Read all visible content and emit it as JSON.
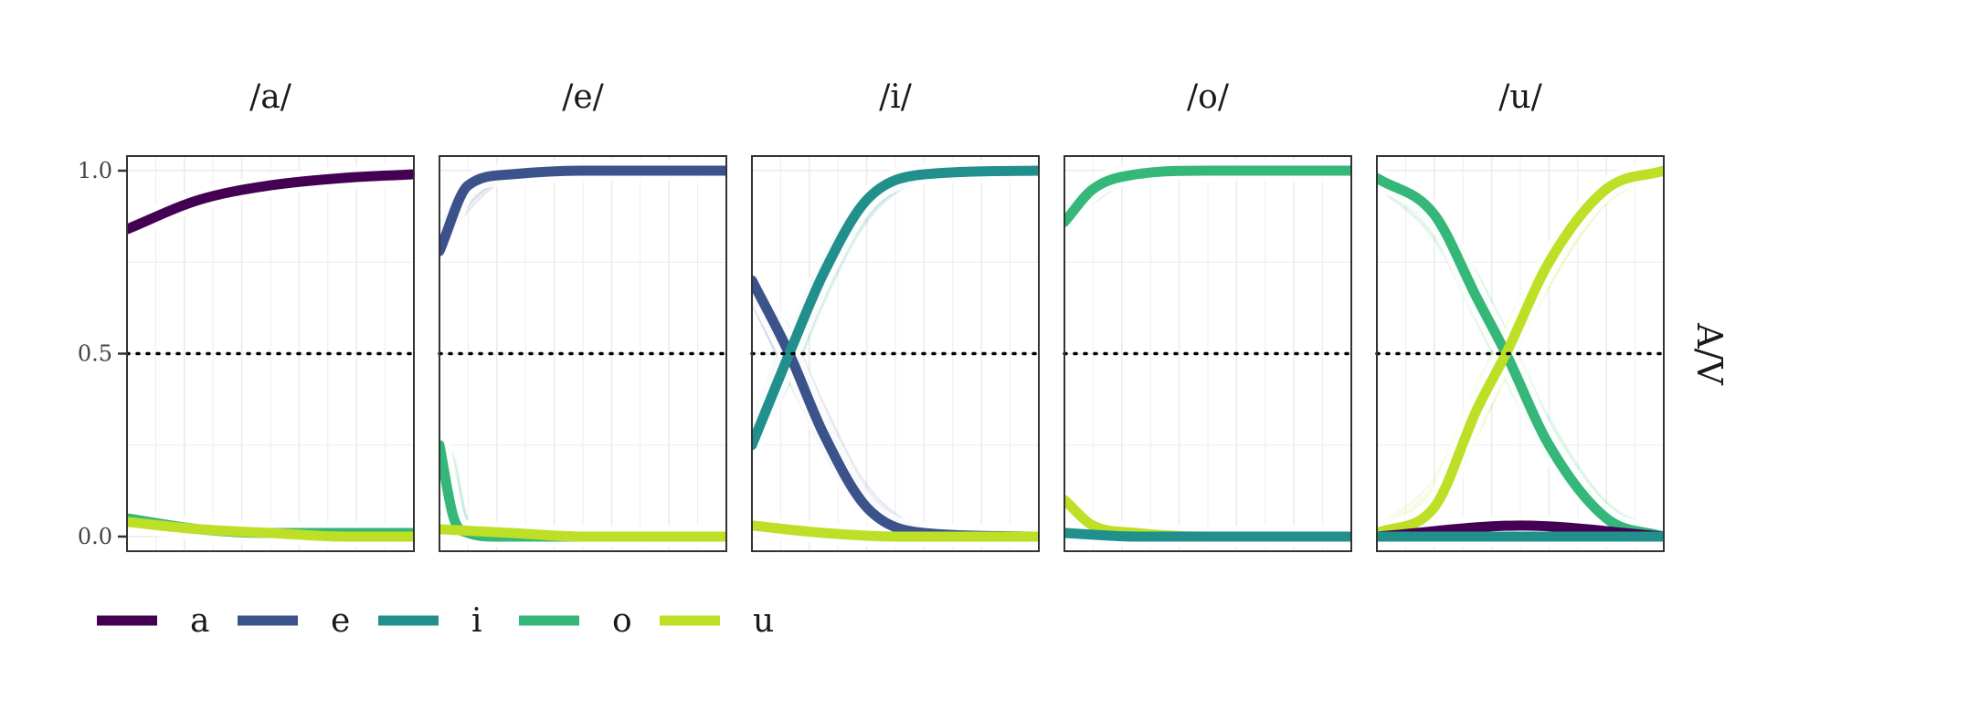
{
  "chart_data": {
    "type": "line",
    "facets": [
      "/a/",
      "/e/",
      "/i/",
      "/o/",
      "/u/"
    ],
    "right_strip_label": "A/V",
    "y_ticks": [
      {
        "value": 0,
        "label": "0.0"
      },
      {
        "value": 0.5,
        "label": "0.5"
      },
      {
        "value": 1,
        "label": "1.0"
      }
    ],
    "ylim": [
      -0.04,
      1.04
    ],
    "xlim": [
      0,
      1
    ],
    "reference_line": {
      "y": 0.5,
      "style": "dotted"
    },
    "grid": true,
    "legend": {
      "position": "bottom-left",
      "entries": [
        "a",
        "e",
        "i",
        "o",
        "u"
      ]
    },
    "colors": {
      "a": "#440154",
      "e": "#3b528b",
      "i": "#21908c",
      "o": "#35b779",
      "u": "#bddf26"
    },
    "panels": [
      {
        "title": "/a/",
        "series": [
          {
            "name": "a",
            "x": [
              0,
              0.25,
              0.5,
              0.75,
              1
            ],
            "y": [
              0.84,
              0.92,
              0.96,
              0.98,
              0.99
            ]
          },
          {
            "name": "o",
            "x": [
              0,
              0.25,
              0.5,
              0.75,
              1
            ],
            "y": [
              0.05,
              0.02,
              0.01,
              0.01,
              0.01
            ]
          },
          {
            "name": "u",
            "x": [
              0,
              0.25,
              0.5,
              0.75,
              1
            ],
            "y": [
              0.04,
              0.02,
              0.01,
              0.0,
              0.0
            ]
          }
        ]
      },
      {
        "title": "/e/",
        "series": [
          {
            "name": "e",
            "x": [
              0,
              0.1,
              0.25,
              0.5,
              1
            ],
            "y": [
              0.78,
              0.96,
              0.99,
              1.0,
              1.0
            ]
          },
          {
            "name": "o",
            "x": [
              0,
              0.05,
              0.1,
              0.2,
              1
            ],
            "y": [
              0.25,
              0.05,
              0.01,
              0.0,
              0.0
            ]
          },
          {
            "name": "u",
            "x": [
              0,
              0.25,
              0.5,
              0.75,
              1
            ],
            "y": [
              0.02,
              0.01,
              0.0,
              0.0,
              0.0
            ]
          }
        ]
      },
      {
        "title": "/i/",
        "series": [
          {
            "name": "e",
            "x": [
              0,
              0.13,
              0.25,
              0.4,
              0.6,
              1
            ],
            "y": [
              0.7,
              0.5,
              0.28,
              0.08,
              0.01,
              0.0
            ]
          },
          {
            "name": "i",
            "x": [
              0,
              0.13,
              0.25,
              0.4,
              0.6,
              1
            ],
            "y": [
              0.25,
              0.5,
              0.72,
              0.92,
              0.99,
              1.0
            ]
          },
          {
            "name": "u",
            "x": [
              0,
              0.25,
              0.5,
              1
            ],
            "y": [
              0.03,
              0.01,
              0.0,
              0.0
            ]
          }
        ]
      },
      {
        "title": "/o/",
        "series": [
          {
            "name": "o",
            "x": [
              0,
              0.1,
              0.25,
              0.5,
              1
            ],
            "y": [
              0.86,
              0.95,
              0.99,
              1.0,
              1.0
            ]
          },
          {
            "name": "u",
            "x": [
              0,
              0.1,
              0.25,
              0.5,
              1
            ],
            "y": [
              0.1,
              0.03,
              0.01,
              0.0,
              0.0
            ]
          },
          {
            "name": "i",
            "x": [
              0,
              0.25,
              0.5,
              1
            ],
            "y": [
              0.01,
              0.0,
              0.0,
              0.0
            ]
          }
        ]
      },
      {
        "title": "/u/",
        "series": [
          {
            "name": "o",
            "x": [
              0,
              0.2,
              0.35,
              0.45,
              0.6,
              0.8,
              1
            ],
            "y": [
              0.98,
              0.88,
              0.65,
              0.5,
              0.25,
              0.05,
              0.0
            ]
          },
          {
            "name": "u",
            "x": [
              0,
              0.2,
              0.35,
              0.45,
              0.6,
              0.8,
              1
            ],
            "y": [
              0.01,
              0.08,
              0.35,
              0.5,
              0.75,
              0.95,
              1.0
            ]
          },
          {
            "name": "a",
            "x": [
              0,
              0.5,
              1
            ],
            "y": [
              0.0,
              0.03,
              0.0
            ]
          },
          {
            "name": "i",
            "x": [
              0,
              0.5,
              1
            ],
            "y": [
              0.0,
              0.0,
              0.0
            ]
          }
        ]
      }
    ]
  }
}
